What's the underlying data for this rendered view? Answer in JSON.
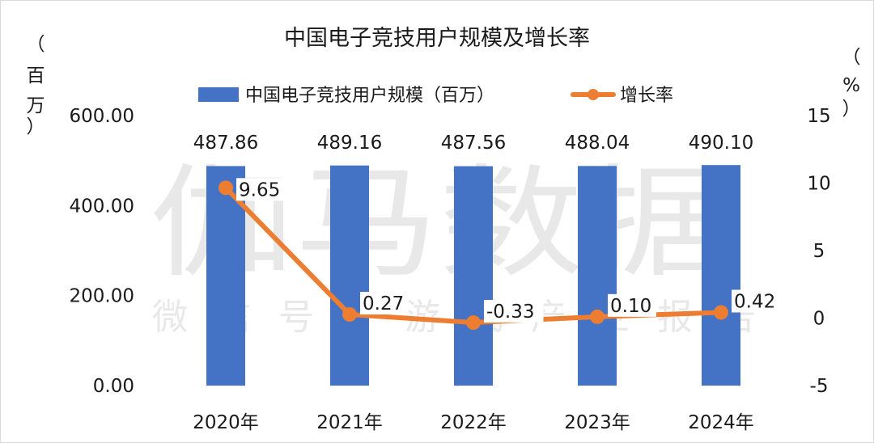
{
  "watermark": {
    "main": "伽马数据",
    "sub": "微信号：游戏产业报告"
  },
  "chart_data": {
    "type": "bar+line",
    "title": "中国电子竞技用户规模及增长率",
    "categories": [
      "2020年",
      "2021年",
      "2022年",
      "2023年",
      "2024年"
    ],
    "series": [
      {
        "name": "中国电子竞技用户规模（百万）",
        "type": "bar",
        "axis": "left",
        "color": "#4472c4",
        "values": [
          487.86,
          489.16,
          487.56,
          488.04,
          490.1
        ],
        "labels": [
          "487.86",
          "489.16",
          "487.56",
          "488.04",
          "490.10"
        ]
      },
      {
        "name": "增长率",
        "type": "line",
        "axis": "right",
        "color": "#ed7d31",
        "values": [
          9.65,
          0.27,
          -0.33,
          0.1,
          0.42
        ],
        "labels": [
          "9.65",
          "0.27",
          "-0.33",
          "0.10",
          "0.42"
        ]
      }
    ],
    "left_axis": {
      "unit_chars": [
        "（",
        "百",
        "万",
        "）"
      ],
      "range": [
        0,
        600
      ],
      "ticks": [
        "0.00",
        "200.00",
        "400.00",
        "600.00"
      ]
    },
    "right_axis": {
      "unit_chars": [
        "（",
        "%",
        "）"
      ],
      "range": [
        -5,
        15
      ],
      "ticks": [
        "-5",
        "0",
        "5",
        "10",
        "15"
      ]
    },
    "legend_position": "top",
    "grid": false
  }
}
